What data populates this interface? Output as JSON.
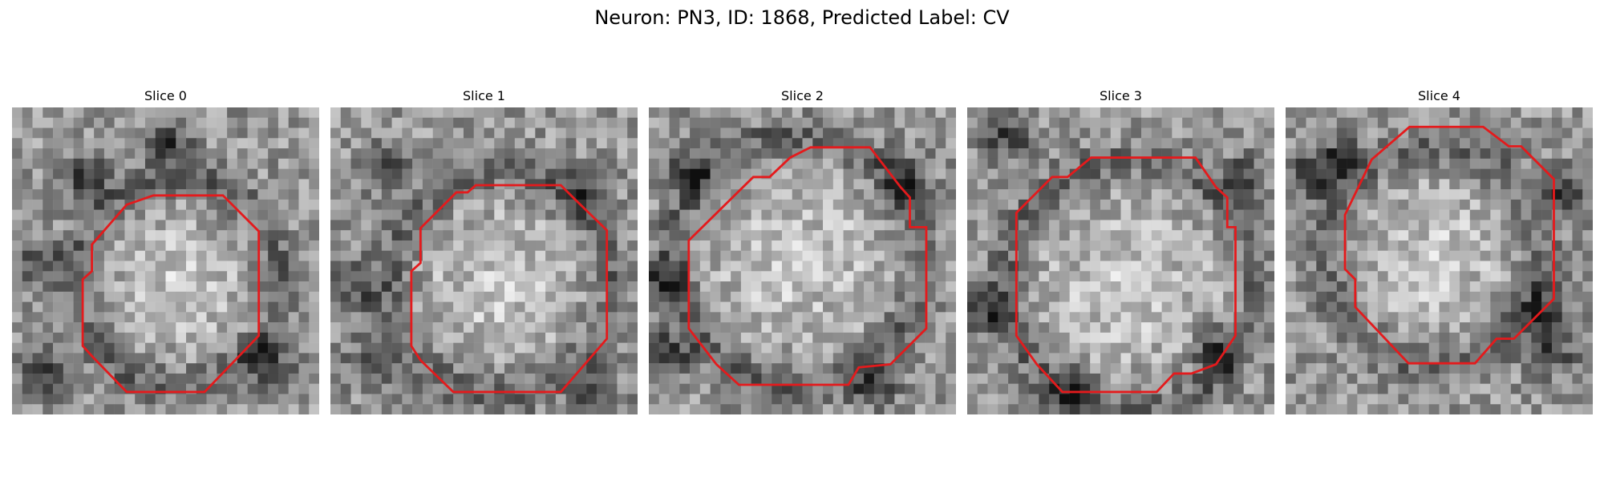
{
  "figure": {
    "title": "Neuron: PN3, ID: 1868, Predicted Label: CV"
  },
  "colors": {
    "contour": "#e41a1c",
    "background": "#ffffff",
    "colormap": "grayscale"
  },
  "panels": [
    {
      "title": "Slice 0"
    },
    {
      "title": "Slice 1"
    },
    {
      "title": "Slice 2"
    },
    {
      "title": "Slice 3"
    },
    {
      "title": "Slice 4"
    }
  ]
}
